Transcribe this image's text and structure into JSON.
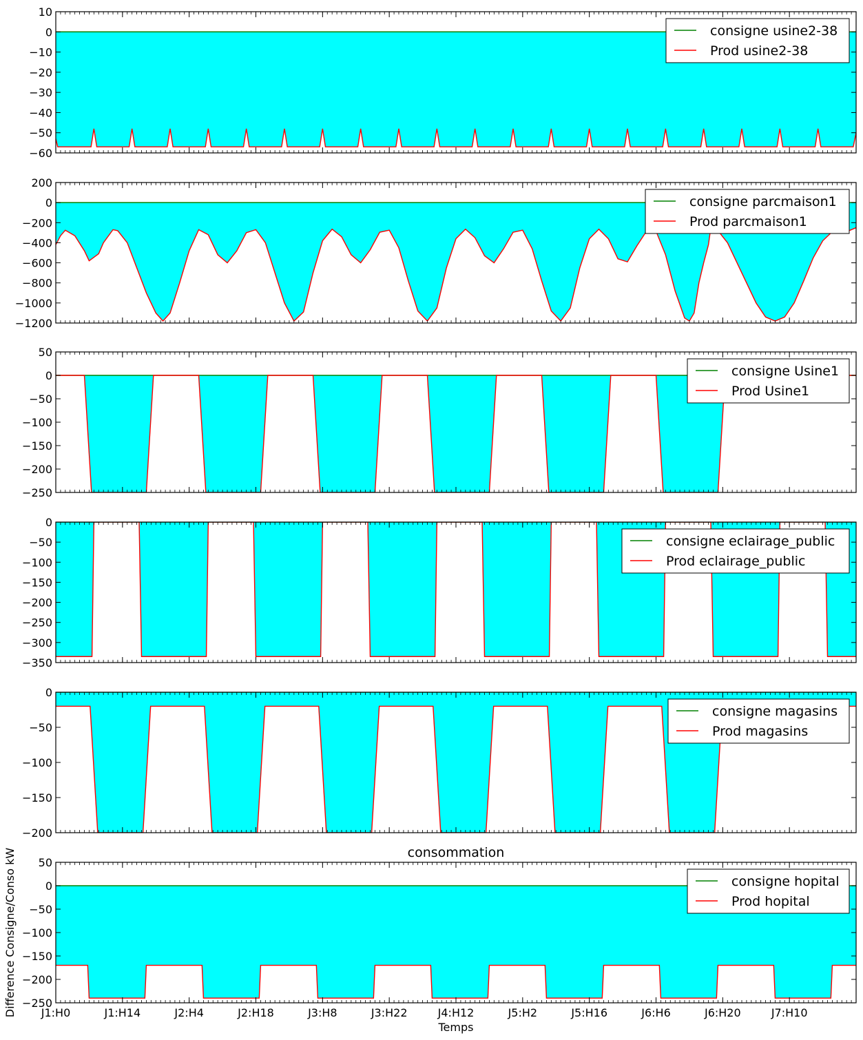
{
  "chart_data": {
    "type": "area",
    "ylabel": "Difference Consigne/Conso kW",
    "xlabel": "Temps",
    "title": "consommation",
    "x_range": [
      0,
      168
    ],
    "x_ticks": [
      {
        "label": "J1:H0",
        "hour": 0
      },
      {
        "label": "J1:H14",
        "hour": 14
      },
      {
        "label": "J2:H4",
        "hour": 28
      },
      {
        "label": "J2:H18",
        "hour": 42
      },
      {
        "label": "J3:H8",
        "hour": 56
      },
      {
        "label": "J3:H22",
        "hour": 70
      },
      {
        "label": "J4:H12",
        "hour": 84
      },
      {
        "label": "J5:H2",
        "hour": 98
      },
      {
        "label": "J5:H16",
        "hour": 112
      },
      {
        "label": "J6:H6",
        "hour": 126
      },
      {
        "label": "J6:H20",
        "hour": 140
      },
      {
        "label": "J7:H10",
        "hour": 154
      }
    ],
    "colors": {
      "consigne": "#008000",
      "prod": "#ff0000",
      "fill": "#00ffff"
    },
    "grid": false,
    "legend_position": "top-right",
    "panels": [
      {
        "name": "usine2-38",
        "ylim": [
          -60,
          10
        ],
        "yticks": [
          10,
          0,
          -10,
          -20,
          -30,
          -40,
          -50,
          -60
        ],
        "legend": [
          "consigne usine2-38",
          "Prod usine2-38"
        ],
        "consigne": [
          [
            0,
            0
          ],
          [
            168,
            0
          ]
        ],
        "prod": [
          [
            0,
            -53
          ],
          [
            0.4,
            -57
          ],
          [
            7.4,
            -57
          ],
          [
            8,
            -48
          ],
          [
            8.6,
            -57
          ],
          [
            15.4,
            -57
          ],
          [
            16,
            -48
          ],
          [
            16.6,
            -57
          ],
          [
            23.4,
            -57
          ],
          [
            24,
            -48
          ],
          [
            24.6,
            -57
          ],
          [
            31.4,
            -57
          ],
          [
            32,
            -48
          ],
          [
            32.6,
            -57
          ],
          [
            39.4,
            -57
          ],
          [
            40,
            -48
          ],
          [
            40.6,
            -57
          ],
          [
            47.4,
            -57
          ],
          [
            48,
            -48
          ],
          [
            48.6,
            -57
          ],
          [
            55.4,
            -57
          ],
          [
            56,
            -48
          ],
          [
            56.6,
            -57
          ],
          [
            63.4,
            -57
          ],
          [
            64,
            -48
          ],
          [
            64.6,
            -57
          ],
          [
            71.4,
            -57
          ],
          [
            72,
            -48
          ],
          [
            72.6,
            -57
          ],
          [
            79.4,
            -57
          ],
          [
            80,
            -48
          ],
          [
            80.6,
            -57
          ],
          [
            87.4,
            -57
          ],
          [
            88,
            -48
          ],
          [
            88.6,
            -57
          ],
          [
            95.4,
            -57
          ],
          [
            96,
            -48
          ],
          [
            96.6,
            -57
          ],
          [
            103.4,
            -57
          ],
          [
            104,
            -48
          ],
          [
            104.6,
            -57
          ],
          [
            111.4,
            -57
          ],
          [
            112,
            -48
          ],
          [
            112.6,
            -57
          ],
          [
            119.4,
            -57
          ],
          [
            120,
            -48
          ],
          [
            120.6,
            -57
          ],
          [
            127.4,
            -57
          ],
          [
            128,
            -48
          ],
          [
            128.6,
            -57
          ],
          [
            135.4,
            -57
          ],
          [
            136,
            -48
          ],
          [
            136.6,
            -57
          ],
          [
            143.4,
            -57
          ],
          [
            144,
            -48
          ],
          [
            144.6,
            -57
          ],
          [
            151.4,
            -57
          ],
          [
            152,
            -48
          ],
          [
            152.6,
            -57
          ],
          [
            159.4,
            -57
          ],
          [
            160,
            -48
          ],
          [
            160.6,
            -57
          ],
          [
            167.4,
            -57
          ],
          [
            168,
            -50
          ]
        ]
      },
      {
        "name": "parcmaison1",
        "ylim": [
          -1200,
          200
        ],
        "yticks": [
          200,
          0,
          -200,
          -400,
          -600,
          -800,
          -1000,
          -1200
        ],
        "legend": [
          "consigne parcmaison1",
          "Prod parcmaison1"
        ],
        "consigne": [
          [
            0,
            0
          ],
          [
            168,
            0
          ]
        ],
        "prod": [
          [
            0,
            -420
          ],
          [
            1,
            -330
          ],
          [
            2,
            -275
          ],
          [
            4,
            -330
          ],
          [
            6,
            -480
          ],
          [
            7,
            -580
          ],
          [
            9,
            -510
          ],
          [
            10,
            -400
          ],
          [
            12,
            -270
          ],
          [
            13,
            -280
          ],
          [
            15,
            -400
          ],
          [
            17,
            -650
          ],
          [
            19,
            -900
          ],
          [
            21,
            -1100
          ],
          [
            22.5,
            -1180
          ],
          [
            24,
            -1100
          ],
          [
            26,
            -800
          ],
          [
            28,
            -480
          ],
          [
            30,
            -270
          ],
          [
            32,
            -320
          ],
          [
            34,
            -520
          ],
          [
            36,
            -600
          ],
          [
            38,
            -480
          ],
          [
            40,
            -300
          ],
          [
            42,
            -270
          ],
          [
            44,
            -400
          ],
          [
            46,
            -700
          ],
          [
            48,
            -1000
          ],
          [
            50,
            -1180
          ],
          [
            52,
            -1090
          ],
          [
            54,
            -700
          ],
          [
            56,
            -380
          ],
          [
            58,
            -265
          ],
          [
            60,
            -340
          ],
          [
            62,
            -520
          ],
          [
            64,
            -600
          ],
          [
            66,
            -470
          ],
          [
            68,
            -295
          ],
          [
            70,
            -275
          ],
          [
            72,
            -450
          ],
          [
            74,
            -780
          ],
          [
            76,
            -1080
          ],
          [
            78,
            -1180
          ],
          [
            80,
            -1050
          ],
          [
            82,
            -650
          ],
          [
            84,
            -360
          ],
          [
            86,
            -265
          ],
          [
            88,
            -350
          ],
          [
            90,
            -530
          ],
          [
            92,
            -600
          ],
          [
            94,
            -460
          ],
          [
            96,
            -295
          ],
          [
            98,
            -275
          ],
          [
            100,
            -460
          ],
          [
            102,
            -780
          ],
          [
            104,
            -1080
          ],
          [
            106,
            -1180
          ],
          [
            108,
            -1050
          ],
          [
            110,
            -650
          ],
          [
            112,
            -360
          ],
          [
            114,
            -265
          ],
          [
            116,
            -360
          ],
          [
            118,
            -560
          ],
          [
            120,
            -590
          ],
          [
            122,
            -430
          ],
          [
            124,
            -285
          ],
          [
            126,
            -285
          ],
          [
            128,
            -520
          ],
          [
            130,
            -880
          ],
          [
            132,
            -1150
          ],
          [
            133,
            -1180
          ],
          [
            134,
            -1100
          ],
          [
            135,
            -800
          ],
          [
            136,
            -600
          ],
          [
            137,
            -420
          ],
          [
            137.5,
            -250
          ],
          [
            139,
            -280
          ],
          [
            141,
            -400
          ],
          [
            143,
            -600
          ],
          [
            145,
            -800
          ],
          [
            147,
            -1000
          ],
          [
            149,
            -1140
          ],
          [
            151,
            -1180
          ],
          [
            153,
            -1140
          ],
          [
            155,
            -1000
          ],
          [
            157,
            -780
          ],
          [
            159,
            -550
          ],
          [
            161,
            -380
          ],
          [
            163,
            -290
          ],
          [
            166,
            -290
          ],
          [
            168,
            -250
          ]
        ]
      },
      {
        "name": "Usine1",
        "ylim": [
          -250,
          50
        ],
        "yticks": [
          50,
          0,
          -50,
          -100,
          -150,
          -200,
          -250
        ],
        "legend": [
          "consigne Usine1",
          "Prod Usine1"
        ],
        "consigne": [
          [
            0,
            0
          ],
          [
            168,
            0
          ]
        ],
        "prod": [
          [
            0,
            0
          ],
          [
            6,
            0
          ],
          [
            7.5,
            -250
          ],
          [
            19,
            -250
          ],
          [
            20.5,
            0
          ],
          [
            30,
            0
          ],
          [
            31.5,
            -250
          ],
          [
            43,
            -250
          ],
          [
            44.5,
            0
          ],
          [
            54,
            0
          ],
          [
            55.5,
            -250
          ],
          [
            67,
            -250
          ],
          [
            68.5,
            0
          ],
          [
            78,
            0
          ],
          [
            79.5,
            -250
          ],
          [
            91,
            -250
          ],
          [
            92.5,
            0
          ],
          [
            102,
            0
          ],
          [
            103.5,
            -250
          ],
          [
            115,
            -250
          ],
          [
            116.5,
            0
          ],
          [
            126,
            0
          ],
          [
            127.5,
            -250
          ],
          [
            139,
            -250
          ],
          [
            140.5,
            0
          ],
          [
            168,
            0
          ]
        ]
      },
      {
        "name": "eclairage_public",
        "ylim": [
          -350,
          0
        ],
        "yticks": [
          0,
          -50,
          -100,
          -150,
          -200,
          -250,
          -300,
          -350
        ],
        "legend": [
          "consigne eclairage_public",
          "Prod eclairage_public"
        ],
        "consigne": [
          [
            0,
            0
          ],
          [
            168,
            0
          ]
        ],
        "prod": [
          [
            0,
            -335
          ],
          [
            7.6,
            -335
          ],
          [
            8,
            0
          ],
          [
            17.5,
            0
          ],
          [
            18,
            -335
          ],
          [
            31.6,
            -335
          ],
          [
            32,
            0
          ],
          [
            41.5,
            0
          ],
          [
            42,
            -335
          ],
          [
            55.6,
            -335
          ],
          [
            56,
            0
          ],
          [
            65.5,
            0
          ],
          [
            66,
            -335
          ],
          [
            79.6,
            -335
          ],
          [
            80,
            0
          ],
          [
            89.5,
            0
          ],
          [
            90,
            -335
          ],
          [
            103.6,
            -335
          ],
          [
            104,
            0
          ],
          [
            113.5,
            0
          ],
          [
            114,
            -335
          ],
          [
            127.6,
            -335
          ],
          [
            128,
            0
          ],
          [
            137.5,
            0
          ],
          [
            138,
            -335
          ],
          [
            151.6,
            -335
          ],
          [
            152,
            0
          ],
          [
            161.5,
            0
          ],
          [
            162,
            -335
          ],
          [
            168,
            -335
          ]
        ]
      },
      {
        "name": "magasins",
        "ylim": [
          -200,
          0
        ],
        "yticks": [
          0,
          -50,
          -100,
          -150,
          -200
        ],
        "legend": [
          "consigne magasins",
          "Prod magasins"
        ],
        "consigne": [
          [
            0,
            0
          ],
          [
            168,
            0
          ]
        ],
        "prod": [
          [
            0,
            -20
          ],
          [
            7.2,
            -20
          ],
          [
            8.8,
            -200
          ],
          [
            18.3,
            -200
          ],
          [
            19.9,
            -20
          ],
          [
            31.2,
            -20
          ],
          [
            32.8,
            -200
          ],
          [
            42.3,
            -200
          ],
          [
            43.9,
            -20
          ],
          [
            55.2,
            -20
          ],
          [
            56.8,
            -200
          ],
          [
            66.3,
            -200
          ],
          [
            67.9,
            -20
          ],
          [
            79.2,
            -20
          ],
          [
            80.8,
            -200
          ],
          [
            90.3,
            -200
          ],
          [
            91.9,
            -20
          ],
          [
            103.2,
            -20
          ],
          [
            104.8,
            -200
          ],
          [
            114.3,
            -200
          ],
          [
            115.9,
            -20
          ],
          [
            127.2,
            -20
          ],
          [
            128.8,
            -200
          ],
          [
            138.3,
            -200
          ],
          [
            139.9,
            -20
          ],
          [
            168,
            -20
          ]
        ]
      },
      {
        "name": "hopital",
        "ylim": [
          -250,
          50
        ],
        "yticks": [
          50,
          0,
          -50,
          -100,
          -150,
          -200,
          -250
        ],
        "legend": [
          "consigne hopital",
          "Prod hopital"
        ],
        "consigne": [
          [
            0,
            0
          ],
          [
            168,
            0
          ]
        ],
        "prod": [
          [
            0,
            -170
          ],
          [
            6.7,
            -170
          ],
          [
            7,
            -240
          ],
          [
            18.7,
            -240
          ],
          [
            19,
            -170
          ],
          [
            30.7,
            -170
          ],
          [
            31,
            -240
          ],
          [
            42.7,
            -240
          ],
          [
            43,
            -170
          ],
          [
            54.7,
            -170
          ],
          [
            55,
            -240
          ],
          [
            66.7,
            -240
          ],
          [
            67,
            -170
          ],
          [
            78.7,
            -170
          ],
          [
            79,
            -240
          ],
          [
            90.7,
            -240
          ],
          [
            91,
            -170
          ],
          [
            102.7,
            -170
          ],
          [
            103,
            -240
          ],
          [
            114.7,
            -240
          ],
          [
            115,
            -170
          ],
          [
            126.7,
            -170
          ],
          [
            127,
            -240
          ],
          [
            138.7,
            -240
          ],
          [
            139,
            -170
          ],
          [
            150.7,
            -170
          ],
          [
            151,
            -240
          ],
          [
            162.7,
            -240
          ],
          [
            163,
            -170
          ],
          [
            168,
            -170
          ]
        ]
      }
    ]
  }
}
